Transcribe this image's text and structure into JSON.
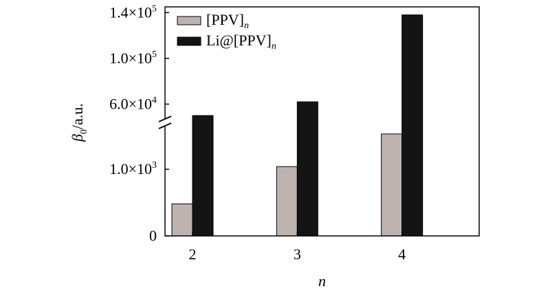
{
  "chart_data": {
    "type": "bar",
    "title": "",
    "xlabel": "n",
    "ylabel": "β0/a.u.",
    "ylabel_base": "β",
    "ylabel_sub": "0",
    "ylabel_unit": "/a.u.",
    "axis_break": true,
    "categories": [
      "2",
      "3",
      "4"
    ],
    "series": [
      {
        "name": "[PPV]n",
        "name_base": "[PPV]",
        "name_sub": "n",
        "color": "#bdb4b0",
        "values": [
          480,
          1040,
          1530
        ]
      },
      {
        "name": "Li@[PPV]n",
        "name_base": "Li@[PPV]",
        "name_sub": "n",
        "color": "#141414",
        "values": [
          50000,
          62000,
          138000
        ]
      }
    ],
    "y_segments": {
      "lower": {
        "ylim": [
          0,
          1600
        ]
      },
      "upper": {
        "ylim": [
          50000,
          145000
        ]
      }
    },
    "yticks": [
      {
        "value": 0,
        "segment": "lower",
        "mantissa": "0",
        "exp": ""
      },
      {
        "value": 1000,
        "segment": "lower",
        "mantissa": "1.0×10",
        "exp": "3"
      },
      {
        "value": 60000,
        "segment": "upper",
        "mantissa": "6.0×10",
        "exp": "4"
      },
      {
        "value": 100000,
        "segment": "upper",
        "mantissa": "1.0×10",
        "exp": "5"
      },
      {
        "value": 140000,
        "segment": "upper",
        "mantissa": "1.4×10",
        "exp": "5"
      }
    ],
    "legend_position": "top-left"
  }
}
